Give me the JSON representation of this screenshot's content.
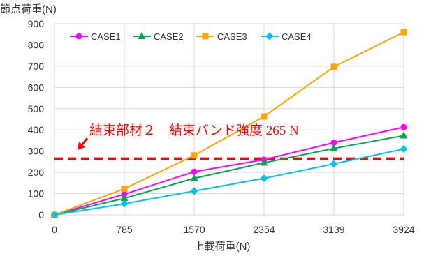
{
  "chart_data": {
    "type": "line",
    "title": "",
    "ylabel": "節点荷重(N)",
    "xlabel": "上載荷重(N)",
    "x": [
      0,
      785,
      1570,
      2354,
      3139,
      3924
    ],
    "x_tick_labels": [
      "0",
      "785",
      "1570",
      "2354",
      "3139",
      "3924"
    ],
    "ylim": [
      0,
      900
    ],
    "y_ticks": [
      0,
      100,
      200,
      300,
      400,
      500,
      600,
      700,
      800,
      900
    ],
    "grid": true,
    "legend_position": "top",
    "series": [
      {
        "name": "CASE1",
        "color": "#ff00ff",
        "marker": "circle",
        "values": [
          0,
          97,
          203,
          260,
          340,
          413
        ]
      },
      {
        "name": "CASE2",
        "color": "#00a550",
        "marker": "triangle",
        "values": [
          0,
          78,
          172,
          245,
          313,
          373
        ]
      },
      {
        "name": "CASE3",
        "color": "#ffa500",
        "marker": "square",
        "values": [
          0,
          123,
          280,
          463,
          697,
          860
        ]
      },
      {
        "name": "CASE4",
        "color": "#00c0f0",
        "marker": "diamond",
        "values": [
          0,
          52,
          112,
          172,
          240,
          310
        ]
      }
    ],
    "reference_line": {
      "value": 265,
      "color": "#ff0000",
      "style": "dashed"
    },
    "annotation": {
      "text": "結束部材２　結束バンド強度  265 N",
      "color": "#ff0000",
      "arrow_color": "#ff0000"
    }
  }
}
